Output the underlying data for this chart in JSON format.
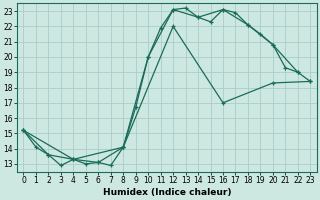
{
  "xlabel": "Humidex (Indice chaleur)",
  "bg_color": "#cce8e0",
  "grid_color": "#aacccc",
  "line_color": "#1a6b5a",
  "xlim": [
    -0.5,
    23.5
  ],
  "ylim": [
    12.5,
    23.5
  ],
  "yticks": [
    13,
    14,
    15,
    16,
    17,
    18,
    19,
    20,
    21,
    22,
    23
  ],
  "xticks": [
    0,
    1,
    2,
    3,
    4,
    5,
    6,
    7,
    8,
    9,
    10,
    11,
    12,
    13,
    14,
    15,
    16,
    17,
    18,
    19,
    20,
    21,
    22,
    23
  ],
  "line1_x": [
    0,
    1,
    2,
    3,
    4,
    5,
    6,
    7,
    8,
    9,
    10,
    11,
    12,
    13,
    14,
    15,
    16,
    17,
    18,
    19,
    20,
    21,
    22,
    23
  ],
  "line1_y": [
    15.2,
    14.1,
    13.6,
    12.9,
    13.3,
    13.0,
    13.1,
    12.9,
    14.1,
    16.7,
    20.0,
    21.9,
    23.1,
    23.2,
    22.6,
    22.3,
    23.1,
    22.9,
    22.1,
    21.5,
    20.8,
    19.3,
    19.0,
    18.4
  ],
  "line2_x": [
    0,
    2,
    4,
    6,
    8,
    10,
    12,
    14,
    16,
    18,
    20,
    22
  ],
  "line2_y": [
    15.2,
    13.6,
    13.3,
    13.1,
    14.1,
    20.0,
    23.1,
    22.6,
    23.1,
    22.1,
    20.8,
    19.0
  ],
  "line3_x": [
    0,
    4,
    8,
    12,
    16,
    20,
    23
  ],
  "line3_y": [
    15.2,
    13.3,
    14.1,
    22.0,
    17.0,
    18.3,
    18.4
  ]
}
